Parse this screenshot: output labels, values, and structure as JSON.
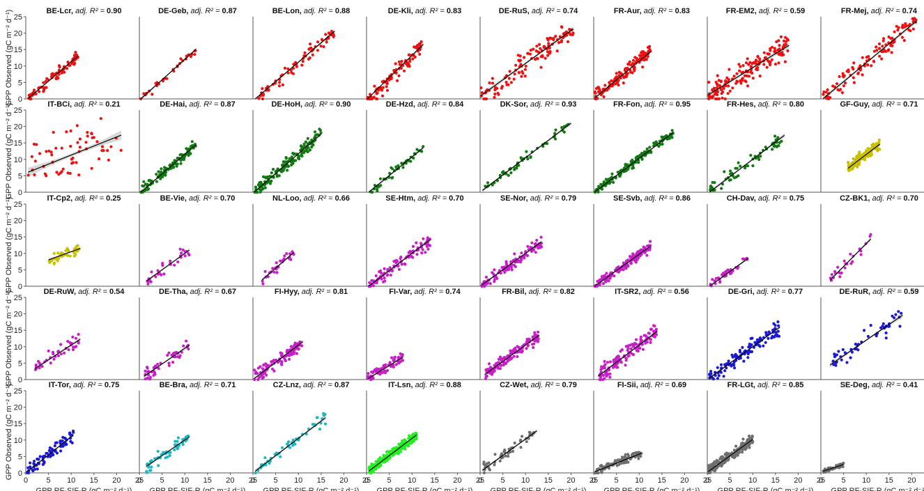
{
  "figure": {
    "ylabel": "GPP Observed (gC m⁻² d⁻¹)",
    "xlabel": "GPP RF-SIF-R (gC m⁻² d⁻¹)",
    "r2_prefix": "adj. R² = ",
    "ticks": [
      "0",
      "5",
      "10",
      "15",
      "20",
      "25"
    ]
  },
  "colors": {
    "red": "#ee1111",
    "green": "#0f7a0f",
    "olive": "#c8c000",
    "magenta": "#c81ec8",
    "blue": "#1a1ad6",
    "cyan": "#1ab8c0",
    "lime": "#22ee22",
    "gray": "#6e6e6e"
  },
  "chart_data": [
    {
      "type": "scatter",
      "site": "BE-Lcr",
      "r2": "0.90",
      "color": "red",
      "slope": 1.18,
      "intercept": -0.5,
      "xr": [
        0.5,
        11.5
      ],
      "n": 80,
      "noise": 1.4
    },
    {
      "type": "scatter",
      "site": "DE-Geb",
      "r2": "0.87",
      "color": "red",
      "slope": 1.25,
      "intercept": -0.5,
      "xr": [
        0.3,
        12.5
      ],
      "n": 30,
      "noise": 1.2
    },
    {
      "type": "scatter",
      "site": "BE-Lon",
      "r2": "0.88",
      "color": "red",
      "slope": 1.2,
      "intercept": -1,
      "xr": [
        0.5,
        18
      ],
      "n": 70,
      "noise": 1.8
    },
    {
      "type": "scatter",
      "site": "DE-Kli",
      "r2": "0.83",
      "color": "red",
      "slope": 1.45,
      "intercept": -1.5,
      "xr": [
        0.2,
        12.5
      ],
      "n": 100,
      "noise": 2
    },
    {
      "type": "scatter",
      "site": "DE-RuS",
      "r2": "0.74",
      "color": "red",
      "slope": 1.0,
      "intercept": 0.8,
      "xr": [
        0.2,
        20.5
      ],
      "n": 120,
      "noise": 3
    },
    {
      "type": "scatter",
      "site": "FR-Aur",
      "r2": "0.83",
      "color": "red",
      "slope": 1.15,
      "intercept": 0,
      "xr": [
        0.2,
        12.5
      ],
      "n": 140,
      "noise": 1.8
    },
    {
      "type": "scatter",
      "site": "FR-EM2",
      "r2": "0.59",
      "color": "red",
      "slope": 0.85,
      "intercept": 1,
      "xr": [
        0.2,
        18
      ],
      "n": 160,
      "noise": 3.5
    },
    {
      "type": "scatter",
      "site": "FR-Mej",
      "r2": "0.74",
      "color": "red",
      "slope": 1.15,
      "intercept": -0.5,
      "xr": [
        0.5,
        21
      ],
      "n": 110,
      "noise": 2.5
    },
    {
      "type": "scatter",
      "site": "IT-BCi",
      "r2": "0.21",
      "color": "red",
      "slope": 0.55,
      "intercept": 5.8,
      "xr": [
        0.5,
        21
      ],
      "n": 60,
      "noise": 6
    },
    {
      "type": "scatter",
      "site": "DE-Hai",
      "r2": "0.87",
      "color": "green",
      "slope": 1.2,
      "intercept": -0.5,
      "xr": [
        0.3,
        12.5
      ],
      "n": 110,
      "noise": 1.6
    },
    {
      "type": "scatter",
      "site": "DE-HoH",
      "r2": "0.90",
      "color": "green",
      "slope": 1.2,
      "intercept": -0.3,
      "xr": [
        0.3,
        15
      ],
      "n": 150,
      "noise": 1.5
    },
    {
      "type": "scatter",
      "site": "DE-Hzd",
      "r2": "0.84",
      "color": "green",
      "slope": 1.15,
      "intercept": -0.8,
      "xr": [
        0.5,
        12.5
      ],
      "n": 45,
      "noise": 1.5
    },
    {
      "type": "scatter",
      "site": "DK-Sor",
      "r2": "0.93",
      "color": "green",
      "slope": 1.05,
      "intercept": 0,
      "xr": [
        0.5,
        20
      ],
      "n": 55,
      "noise": 1.2
    },
    {
      "type": "scatter",
      "site": "FR-Fon",
      "r2": "0.95",
      "color": "green",
      "slope": 1.05,
      "intercept": -0.2,
      "xr": [
        0.3,
        17.5
      ],
      "n": 170,
      "noise": 1
    },
    {
      "type": "scatter",
      "site": "FR-Hes",
      "r2": "0.80",
      "color": "green",
      "slope": 1.05,
      "intercept": -0.5,
      "xr": [
        0.5,
        17
      ],
      "n": 60,
      "noise": 1.8
    },
    {
      "type": "scatter",
      "site": "GF-Guy",
      "r2": "0.71",
      "color": "olive",
      "slope": 1.05,
      "intercept": 1,
      "xr": [
        6,
        13
      ],
      "n": 130,
      "noise": 1.5
    },
    {
      "type": "scatter",
      "site": "IT-Cp2",
      "r2": "0.25",
      "color": "olive",
      "slope": 0.5,
      "intercept": 5.5,
      "xr": [
        5,
        12
      ],
      "n": 40,
      "noise": 1.2
    },
    {
      "type": "scatter",
      "site": "BE-Vie",
      "r2": "0.70",
      "color": "magenta",
      "slope": 1.0,
      "intercept": 0,
      "xr": [
        1.5,
        11
      ],
      "n": 30,
      "noise": 1.5
    },
    {
      "type": "scatter",
      "site": "NL-Loo",
      "r2": "0.66",
      "color": "magenta",
      "slope": 1.2,
      "intercept": -0.5,
      "xr": [
        2,
        9
      ],
      "n": 30,
      "noise": 1.6
    },
    {
      "type": "scatter",
      "site": "SE-Htm",
      "r2": "0.70",
      "color": "magenta",
      "slope": 1.05,
      "intercept": -0.5,
      "xr": [
        0.5,
        14
      ],
      "n": 100,
      "noise": 2
    },
    {
      "type": "scatter",
      "site": "SE-Nor",
      "r2": "0.79",
      "color": "magenta",
      "slope": 1.0,
      "intercept": 0,
      "xr": [
        0.3,
        13.5
      ],
      "n": 110,
      "noise": 1.6
    },
    {
      "type": "scatter",
      "site": "SE-Svb",
      "r2": "0.86",
      "color": "magenta",
      "slope": 1.0,
      "intercept": -0.3,
      "xr": [
        0.2,
        12.5
      ],
      "n": 150,
      "noise": 1.2
    },
    {
      "type": "scatter",
      "site": "CH-Dav",
      "r2": "0.75",
      "color": "magenta",
      "slope": 1.0,
      "intercept": -0.5,
      "xr": [
        0.5,
        9
      ],
      "n": 40,
      "noise": 1.2
    },
    {
      "type": "scatter",
      "site": "CZ-BK1",
      "r2": "0.70",
      "color": "magenta",
      "slope": 1.4,
      "intercept": -1,
      "xr": [
        2,
        11
      ],
      "n": 25,
      "noise": 1.8
    },
    {
      "type": "scatter",
      "site": "DE-RuW",
      "r2": "0.54",
      "color": "magenta",
      "slope": 0.9,
      "intercept": 1.5,
      "xr": [
        2,
        12
      ],
      "n": 40,
      "noise": 2
    },
    {
      "type": "scatter",
      "site": "DE-Tha",
      "r2": "0.67",
      "color": "magenta",
      "slope": 0.95,
      "intercept": 0,
      "xr": [
        1,
        11
      ],
      "n": 45,
      "noise": 1.8
    },
    {
      "type": "scatter",
      "site": "FI-Hyy",
      "r2": "0.81",
      "color": "magenta",
      "slope": 1.05,
      "intercept": 0,
      "xr": [
        0.3,
        11
      ],
      "n": 100,
      "noise": 1.6
    },
    {
      "type": "scatter",
      "site": "FI-Var",
      "r2": "0.74",
      "color": "magenta",
      "slope": 0.85,
      "intercept": 0,
      "xr": [
        0.3,
        8
      ],
      "n": 80,
      "noise": 1.3
    },
    {
      "type": "scatter",
      "site": "FR-Bil",
      "r2": "0.82",
      "color": "magenta",
      "slope": 1.0,
      "intercept": 0.5,
      "xr": [
        1,
        13
      ],
      "n": 140,
      "noise": 1.5
    },
    {
      "type": "scatter",
      "site": "IT-SR2",
      "r2": "0.56",
      "color": "magenta",
      "slope": 1.05,
      "intercept": 0,
      "xr": [
        1,
        14
      ],
      "n": 140,
      "noise": 2.2
    },
    {
      "type": "scatter",
      "site": "DE-Gri",
      "r2": "0.77",
      "color": "blue",
      "slope": 1.0,
      "intercept": 0,
      "xr": [
        0.3,
        16
      ],
      "n": 120,
      "noise": 1.8
    },
    {
      "type": "scatter",
      "site": "DE-RuR",
      "r2": "0.59",
      "color": "blue",
      "slope": 0.95,
      "intercept": 2.5,
      "xr": [
        2,
        18
      ],
      "n": 50,
      "noise": 2.5
    },
    {
      "type": "scatter",
      "site": "IT-Tor",
      "r2": "0.75",
      "color": "blue",
      "slope": 1.1,
      "intercept": 0,
      "xr": [
        0.3,
        10.5
      ],
      "n": 80,
      "noise": 1.8
    },
    {
      "type": "scatter",
      "site": "BE-Bra",
      "r2": "0.71",
      "color": "cyan",
      "slope": 0.95,
      "intercept": 0.5,
      "xr": [
        1.5,
        11
      ],
      "n": 55,
      "noise": 1.6
    },
    {
      "type": "scatter",
      "site": "CZ-Lnz",
      "r2": "0.87",
      "color": "cyan",
      "slope": 1.05,
      "intercept": 0,
      "xr": [
        0.5,
        16
      ],
      "n": 50,
      "noise": 1.6
    },
    {
      "type": "scatter",
      "site": "IT-Lsn",
      "r2": "0.88",
      "color": "lime",
      "slope": 1.05,
      "intercept": 0,
      "xr": [
        0.5,
        11
      ],
      "n": 220,
      "noise": 1.2
    },
    {
      "type": "scatter",
      "site": "CZ-Wet",
      "r2": "0.79",
      "color": "gray",
      "slope": 1.0,
      "intercept": 0.3,
      "xr": [
        0.5,
        12.5
      ],
      "n": 50,
      "noise": 1.6
    },
    {
      "type": "scatter",
      "site": "FI-Sii",
      "r2": "0.69",
      "color": "gray",
      "slope": 0.55,
      "intercept": 0.2,
      "xr": [
        0.3,
        10.5
      ],
      "n": 100,
      "noise": 1
    },
    {
      "type": "scatter",
      "site": "FR-LGt",
      "r2": "0.85",
      "color": "gray",
      "slope": 1.0,
      "intercept": 0.2,
      "xr": [
        0.2,
        10
      ],
      "n": 200,
      "noise": 1.3
    },
    {
      "type": "scatter",
      "site": "SE-Deg",
      "r2": "0.41",
      "color": "gray",
      "slope": 0.45,
      "intercept": 0.3,
      "xr": [
        0.5,
        5
      ],
      "n": 50,
      "noise": 0.6
    }
  ]
}
